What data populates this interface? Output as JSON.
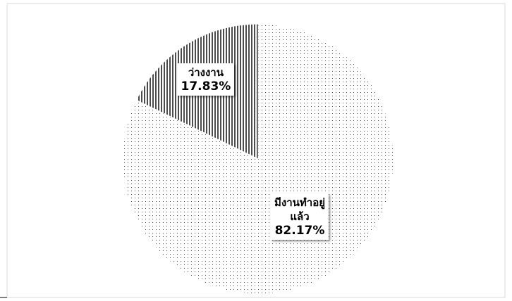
{
  "chart_data": {
    "type": "pie",
    "categories": [
      "ว่างงาน",
      "มีงานทำอยู่\nแล้ว"
    ],
    "values": [
      17.83,
      82.17
    ],
    "value_labels": [
      "17.83%",
      "82.17%"
    ],
    "colors": [
      "#000000",
      "#444444"
    ]
  }
}
